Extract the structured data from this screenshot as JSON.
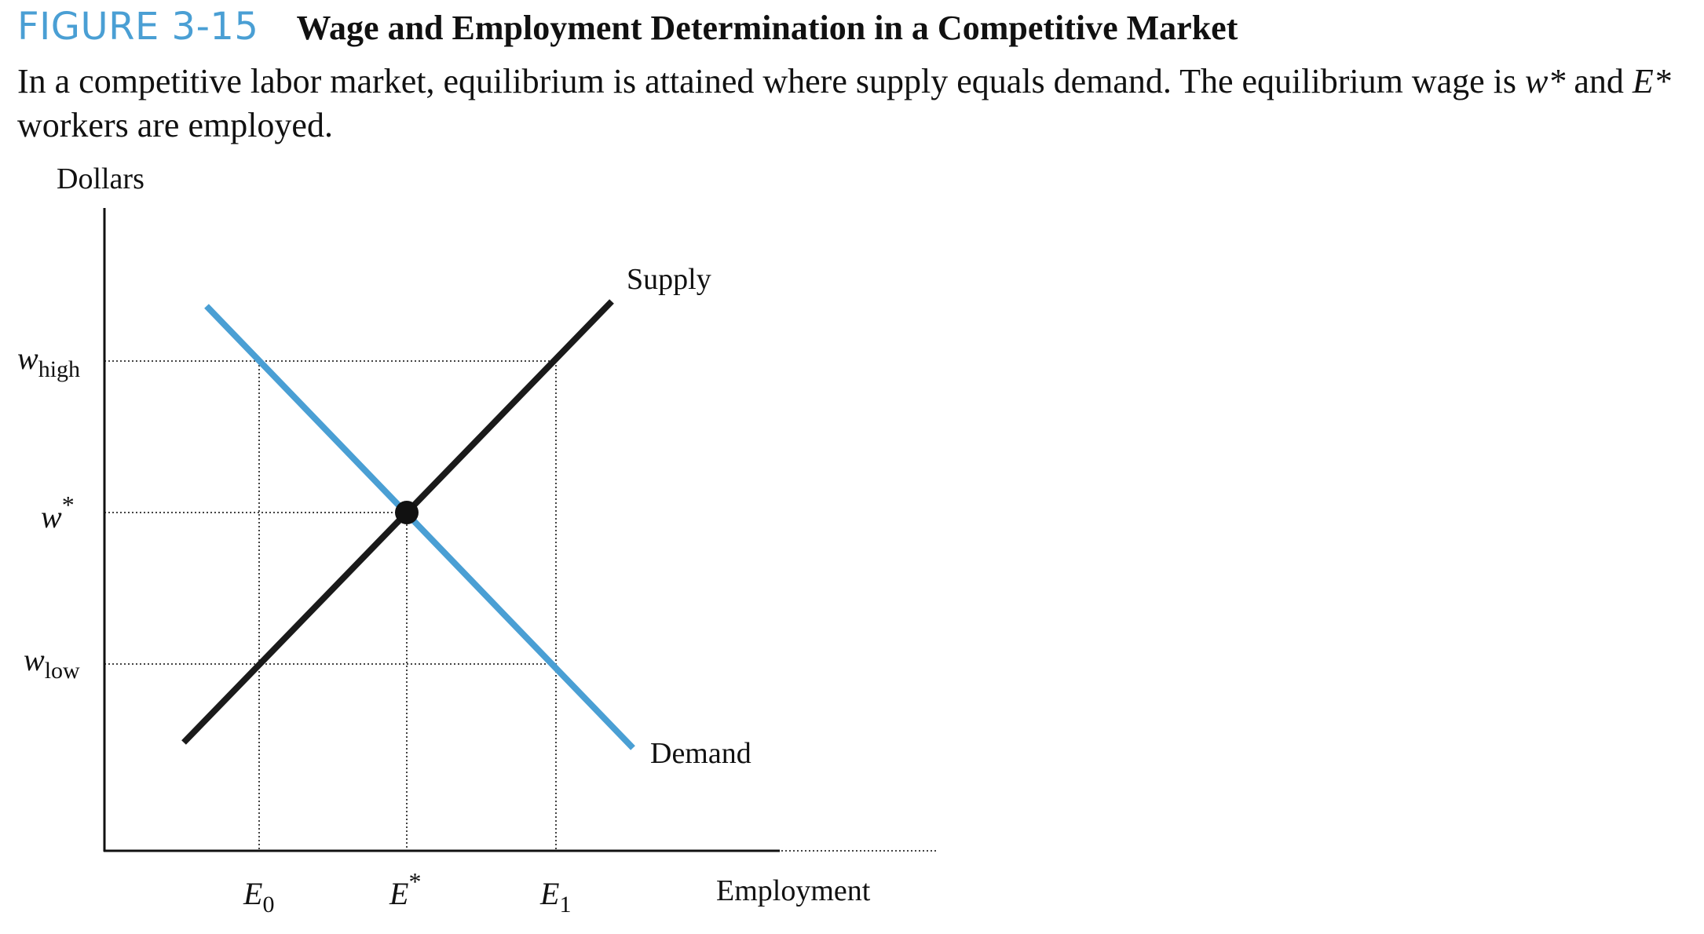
{
  "figure": {
    "label": "FIGURE 3-15",
    "title": "Wage and Employment Determination in a Competitive Market",
    "caption_parts": [
      {
        "text": "In a competitive labor market, equilibrium is attained where supply equals demand. The equilibrium wage is ",
        "italic": false
      },
      {
        "text": "w*",
        "italic": true
      },
      {
        "text": " and ",
        "italic": false
      },
      {
        "text": "E*",
        "italic": true
      },
      {
        "text": " workers are employed.",
        "italic": false
      }
    ]
  },
  "diagram": {
    "y_axis_label": "Dollars",
    "x_axis_label": "Employment",
    "y_ticks": [
      {
        "id": "whigh",
        "base": "w",
        "sub": "high",
        "sup": ""
      },
      {
        "id": "wstar",
        "base": "w",
        "sub": "",
        "sup": "*"
      },
      {
        "id": "wlow",
        "base": "w",
        "sub": "low",
        "sup": ""
      }
    ],
    "x_ticks": [
      {
        "id": "E0",
        "base": "E",
        "sub": "0",
        "sup": ""
      },
      {
        "id": "Estar",
        "base": "E",
        "sub": "",
        "sup": "*"
      },
      {
        "id": "E1",
        "base": "E",
        "sub": "1",
        "sup": ""
      }
    ],
    "curves": {
      "supply_label": "Supply",
      "demand_label": "Demand",
      "supply_color": "#1a1a1a",
      "demand_color": "#4a9fd4"
    },
    "equilibrium_point": "equilibrium-point"
  }
}
